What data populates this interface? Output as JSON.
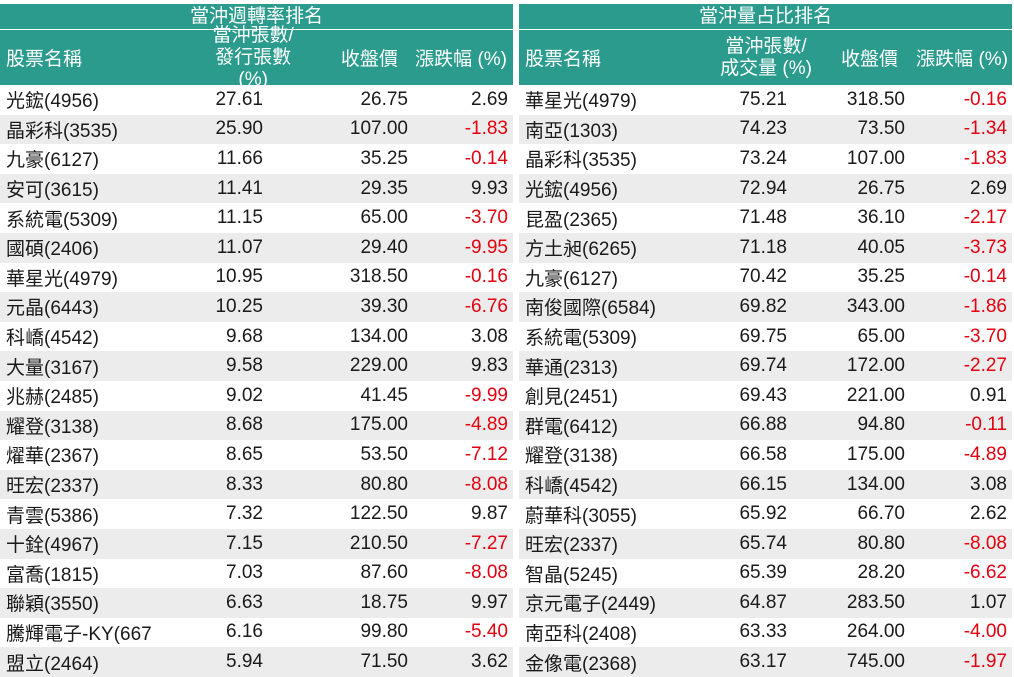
{
  "left": {
    "title": "當沖週轉率排名",
    "headers": {
      "name": "股票名稱",
      "col2_line1": "當沖張數/",
      "col2_line2": "發行張數 (%)",
      "col3": "收盤價",
      "col4": "漲跌幅 (%)"
    },
    "rows": [
      {
        "name": "光鋐(4956)",
        "v2": "27.61",
        "v3": "26.75",
        "v4": "2.69",
        "neg": false
      },
      {
        "name": "晶彩科(3535)",
        "v2": "25.90",
        "v3": "107.00",
        "v4": "-1.83",
        "neg": true
      },
      {
        "name": "九豪(6127)",
        "v2": "11.66",
        "v3": "35.25",
        "v4": "-0.14",
        "neg": true
      },
      {
        "name": "安可(3615)",
        "v2": "11.41",
        "v3": "29.35",
        "v4": "9.93",
        "neg": false
      },
      {
        "name": "系統電(5309)",
        "v2": "11.15",
        "v3": "65.00",
        "v4": "-3.70",
        "neg": true
      },
      {
        "name": "國碩(2406)",
        "v2": "11.07",
        "v3": "29.40",
        "v4": "-9.95",
        "neg": true
      },
      {
        "name": "華星光(4979)",
        "v2": "10.95",
        "v3": "318.50",
        "v4": "-0.16",
        "neg": true
      },
      {
        "name": "元晶(6443)",
        "v2": "10.25",
        "v3": "39.30",
        "v4": "-6.76",
        "neg": true
      },
      {
        "name": "科嶠(4542)",
        "v2": "9.68",
        "v3": "134.00",
        "v4": "3.08",
        "neg": false
      },
      {
        "name": "大量(3167)",
        "v2": "9.58",
        "v3": "229.00",
        "v4": "9.83",
        "neg": false
      },
      {
        "name": "兆赫(2485)",
        "v2": "9.02",
        "v3": "41.45",
        "v4": "-9.99",
        "neg": true
      },
      {
        "name": "耀登(3138)",
        "v2": "8.68",
        "v3": "175.00",
        "v4": "-4.89",
        "neg": true
      },
      {
        "name": "燿華(2367)",
        "v2": "8.65",
        "v3": "53.50",
        "v4": "-7.12",
        "neg": true
      },
      {
        "name": "旺宏(2337)",
        "v2": "8.33",
        "v3": "80.80",
        "v4": "-8.08",
        "neg": true
      },
      {
        "name": "青雲(5386)",
        "v2": "7.32",
        "v3": "122.50",
        "v4": "9.87",
        "neg": false
      },
      {
        "name": "十銓(4967)",
        "v2": "7.15",
        "v3": "210.50",
        "v4": "-7.27",
        "neg": true
      },
      {
        "name": "富喬(1815)",
        "v2": "7.03",
        "v3": "87.60",
        "v4": "-8.08",
        "neg": true
      },
      {
        "name": "聯穎(3550)",
        "v2": "6.63",
        "v3": "18.75",
        "v4": "9.97",
        "neg": false
      },
      {
        "name": "騰輝電子-KY(667",
        "v2": "6.16",
        "v3": "99.80",
        "v4": "-5.40",
        "neg": true
      },
      {
        "name": "盟立(2464)",
        "v2": "5.94",
        "v3": "71.50",
        "v4": "3.62",
        "neg": false
      }
    ]
  },
  "right": {
    "title": "當沖量占比排名",
    "headers": {
      "name": "股票名稱",
      "col2_line1": "當沖張數/",
      "col2_line2": "成交量 (%)",
      "col3": "收盤價",
      "col4": "漲跌幅 (%)"
    },
    "rows": [
      {
        "name": "華星光(4979)",
        "v2": "75.21",
        "v3": "318.50",
        "v4": "-0.16",
        "neg": true
      },
      {
        "name": "南亞(1303)",
        "v2": "74.23",
        "v3": "73.50",
        "v4": "-1.34",
        "neg": true
      },
      {
        "name": "晶彩科(3535)",
        "v2": "73.24",
        "v3": "107.00",
        "v4": "-1.83",
        "neg": true
      },
      {
        "name": "光鋐(4956)",
        "v2": "72.94",
        "v3": "26.75",
        "v4": "2.69",
        "neg": false
      },
      {
        "name": "昆盈(2365)",
        "v2": "71.48",
        "v3": "36.10",
        "v4": "-2.17",
        "neg": true
      },
      {
        "name": "方土昶(6265)",
        "v2": "71.18",
        "v3": "40.05",
        "v4": "-3.73",
        "neg": true
      },
      {
        "name": "九豪(6127)",
        "v2": "70.42",
        "v3": "35.25",
        "v4": "-0.14",
        "neg": true
      },
      {
        "name": "南俊國際(6584)",
        "v2": "69.82",
        "v3": "343.00",
        "v4": "-1.86",
        "neg": true
      },
      {
        "name": "系統電(5309)",
        "v2": "69.75",
        "v3": "65.00",
        "v4": "-3.70",
        "neg": true
      },
      {
        "name": "華通(2313)",
        "v2": "69.74",
        "v3": "172.00",
        "v4": "-2.27",
        "neg": true
      },
      {
        "name": "創見(2451)",
        "v2": "69.43",
        "v3": "221.00",
        "v4": "0.91",
        "neg": false
      },
      {
        "name": "群電(6412)",
        "v2": "66.88",
        "v3": "94.80",
        "v4": "-0.11",
        "neg": true
      },
      {
        "name": "耀登(3138)",
        "v2": "66.58",
        "v3": "175.00",
        "v4": "-4.89",
        "neg": true
      },
      {
        "name": "科嶠(4542)",
        "v2": "66.15",
        "v3": "134.00",
        "v4": "3.08",
        "neg": false
      },
      {
        "name": "蔚華科(3055)",
        "v2": "65.92",
        "v3": "66.70",
        "v4": "2.62",
        "neg": false
      },
      {
        "name": "旺宏(2337)",
        "v2": "65.74",
        "v3": "80.80",
        "v4": "-8.08",
        "neg": true
      },
      {
        "name": "智晶(5245)",
        "v2": "65.39",
        "v3": "28.20",
        "v4": "-6.62",
        "neg": true
      },
      {
        "name": "京元電子(2449)",
        "v2": "64.87",
        "v3": "283.50",
        "v4": "1.07",
        "neg": false
      },
      {
        "name": "南亞科(2408)",
        "v2": "63.33",
        "v3": "264.00",
        "v4": "-4.00",
        "neg": true
      },
      {
        "name": "金像電(2368)",
        "v2": "63.17",
        "v3": "745.00",
        "v4": "-1.97",
        "neg": true
      }
    ]
  },
  "colors": {
    "header_bg": "#2a9b8c",
    "alt_row_bg": "#ececec",
    "negative": "#e3000f",
    "text": "#1a1a1a"
  }
}
